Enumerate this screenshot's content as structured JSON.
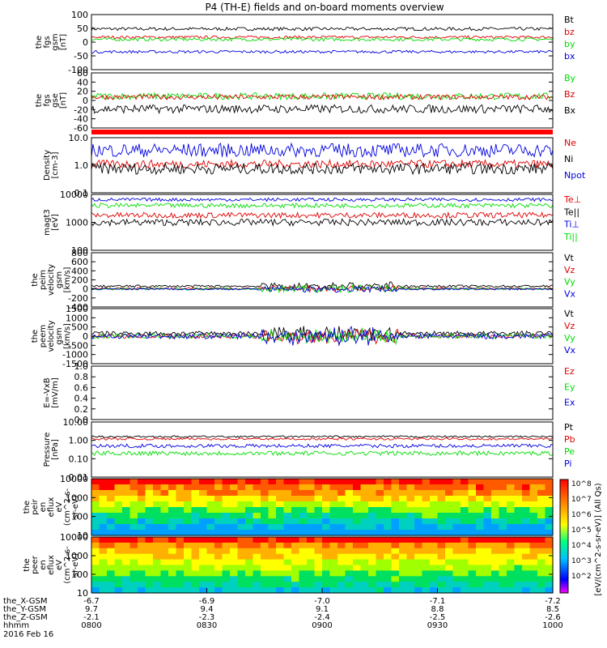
{
  "title": "P4 (TH-E) fields and on-board moments overview",
  "chart_data": [
    {
      "type": "line",
      "panel": "fgs-gsm-mag",
      "ylabel": [
        "the",
        "fgs",
        "gsm",
        "[nT]"
      ],
      "yticks": [
        "100",
        "50",
        "0",
        "-50",
        "-100"
      ],
      "ylim": [
        -100,
        100
      ],
      "series": [
        {
          "name": "Bt",
          "color": "#000000",
          "level": 48,
          "noise": 6
        },
        {
          "name": "bz",
          "color": "#e00000",
          "level": 18,
          "noise": 5
        },
        {
          "name": "by",
          "color": "#00dd00",
          "level": 10,
          "noise": 6
        },
        {
          "name": "bx",
          "color": "#0000e0",
          "level": -35,
          "noise": 5
        }
      ]
    },
    {
      "type": "line",
      "panel": "fgs-gse",
      "ylabel": [
        "the",
        "fgs",
        "gse",
        "[nT]"
      ],
      "yticks": [
        "60",
        "40",
        "20",
        "0",
        "-20",
        "-40",
        "-60"
      ],
      "ylim": [
        -70,
        60
      ],
      "series": [
        {
          "name": "By",
          "color": "#00dd00",
          "level": 5,
          "noise": 8
        },
        {
          "name": "Bz",
          "color": "#e00000",
          "level": 3,
          "noise": 6
        },
        {
          "name": "Bx",
          "color": "#000000",
          "level": -25,
          "noise": 10
        }
      ]
    },
    {
      "type": "bar",
      "panel": "mode-bar",
      "color": "#ff0000"
    },
    {
      "type": "line",
      "panel": "density",
      "ylabel": [
        "Density",
        "[cm-3]"
      ],
      "yticks": [
        "10.0",
        "1.0",
        "0.1"
      ],
      "ylog": true,
      "ylim": [
        0.1,
        10
      ],
      "series": [
        {
          "name": "Ne",
          "color": "#e00000",
          "level": 1.1,
          "noise": 0.15
        },
        {
          "name": "Ni",
          "color": "#000000",
          "level": 0.75,
          "noise": 0.2
        },
        {
          "name": "Npot",
          "color": "#0000e0",
          "level": 3.5,
          "noise": 0.25
        }
      ]
    },
    {
      "type": "line",
      "panel": "temperature",
      "ylabel": [
        "magt3",
        "[eV]"
      ],
      "yticks": [
        "10000",
        "1000",
        "100"
      ],
      "ylog": true,
      "ylim": [
        100,
        10000
      ],
      "series": [
        {
          "name": "Te⊥",
          "color": "#e00000",
          "level": 1800,
          "noise": 0.1
        },
        {
          "name": "Te||",
          "color": "#000000",
          "level": 1000,
          "noise": 0.12
        },
        {
          "name": "Ti⊥",
          "color": "#0000e0",
          "level": 6500,
          "noise": 0.06
        },
        {
          "name": "Ti||",
          "color": "#00dd00",
          "level": 4000,
          "noise": 0.08
        }
      ]
    },
    {
      "type": "line",
      "panel": "peim-velocity",
      "ylabel": [
        "the",
        "peim",
        "velocity",
        "gsm",
        "[km/s]"
      ],
      "yticks": [
        "800",
        "600",
        "400",
        "200",
        "0",
        "-200",
        "-400"
      ],
      "ylim": [
        -400,
        800
      ],
      "series": [
        {
          "name": "Vt",
          "color": "#000000",
          "level": 60,
          "noise": 25
        },
        {
          "name": "Vz",
          "color": "#e00000",
          "level": 10,
          "noise": 20
        },
        {
          "name": "Vy",
          "color": "#00dd00",
          "level": 0,
          "noise": 25
        },
        {
          "name": "Vx",
          "color": "#0000e0",
          "level": -5,
          "noise": 20
        }
      ]
    },
    {
      "type": "line",
      "panel": "peem-velocity",
      "ylabel": [
        "the",
        "peem",
        "velocity",
        "gsm",
        "[km/s]"
      ],
      "yticks": [
        "1500",
        "1000",
        "500",
        "0",
        "-500",
        "-1000",
        "-1500"
      ],
      "ylim": [
        -1500,
        1500
      ],
      "series": [
        {
          "name": "Vt",
          "color": "#000000",
          "level": 150,
          "noise": 120
        },
        {
          "name": "Vz",
          "color": "#e00000",
          "level": 0,
          "noise": 120
        },
        {
          "name": "Vy",
          "color": "#00dd00",
          "level": 0,
          "noise": 120
        },
        {
          "name": "Vx",
          "color": "#0000e0",
          "level": 0,
          "noise": 150
        }
      ]
    },
    {
      "type": "line",
      "panel": "efield",
      "ylabel": [
        "E=-VxB",
        "[mV/m]"
      ],
      "yticks": [
        "1.0",
        "0.8",
        "0.6",
        "0.4",
        "0.2",
        "0.0"
      ],
      "ylim": [
        0,
        1
      ],
      "series": [
        {
          "name": "Ez",
          "color": "#e00000"
        },
        {
          "name": "Ey",
          "color": "#00dd00"
        },
        {
          "name": "Ex",
          "color": "#0000e0"
        }
      ]
    },
    {
      "type": "line",
      "panel": "pressure",
      "ylabel": [
        "Pressure",
        "[nPa]"
      ],
      "yticks": [
        "10.00",
        "1.00",
        "0.10",
        "0.01"
      ],
      "ylog": true,
      "ylim": [
        0.01,
        10
      ],
      "series": [
        {
          "name": "Pt",
          "color": "#000000",
          "level": 1.6,
          "noise": 0.05
        },
        {
          "name": "Pb",
          "color": "#e00000",
          "level": 1.2,
          "noise": 0.06
        },
        {
          "name": "Pe",
          "color": "#00dd00",
          "level": 0.2,
          "noise": 0.12
        },
        {
          "name": "Pi",
          "color": "#0000e0",
          "level": 0.5,
          "noise": 0.1
        }
      ]
    },
    {
      "type": "heatmap",
      "panel": "peir-energy-flux",
      "ylabel": [
        "the",
        "peir",
        "en",
        "eflux",
        "eV",
        "(cm^2-s-",
        "sr-eV)"
      ],
      "yticks": [
        "10000",
        "1000",
        "100",
        "10"
      ],
      "ylog": true,
      "ylim": [
        5,
        30000
      ]
    },
    {
      "type": "heatmap",
      "panel": "peer-energy-flux",
      "ylabel": [
        "the",
        "peer",
        "en",
        "eflux",
        "eV",
        "(cm^2-s-",
        "sr-eV)"
      ],
      "yticks": [
        "10000",
        "1000",
        "100",
        "10"
      ],
      "ylog": true,
      "ylim": [
        5,
        30000
      ]
    }
  ],
  "colorbar": {
    "ticks": [
      "10^8",
      "10^7",
      "10^6",
      "10^5",
      "10^4",
      "10^3",
      "10^2"
    ],
    "label": "[eV/(cm^2-s-sr-eV)] (All Qs)"
  },
  "xaxis": {
    "rows": [
      {
        "label": "the_X-GSM",
        "values": [
          "-6.7",
          "-6.9",
          "-7.0",
          "-7.1",
          "-7.2"
        ]
      },
      {
        "label": "the_Y-GSM",
        "values": [
          "9.7",
          "9.4",
          "9.1",
          "8.8",
          "8.5"
        ]
      },
      {
        "label": "the_Z-GSM",
        "values": [
          "-2.1",
          "-2.3",
          "-2.4",
          "-2.5",
          "-2.6"
        ]
      },
      {
        "label": "hhmm",
        "values": [
          "0800",
          "0830",
          "0900",
          "0930",
          "1000"
        ]
      }
    ],
    "date": "2016 Feb 16"
  }
}
